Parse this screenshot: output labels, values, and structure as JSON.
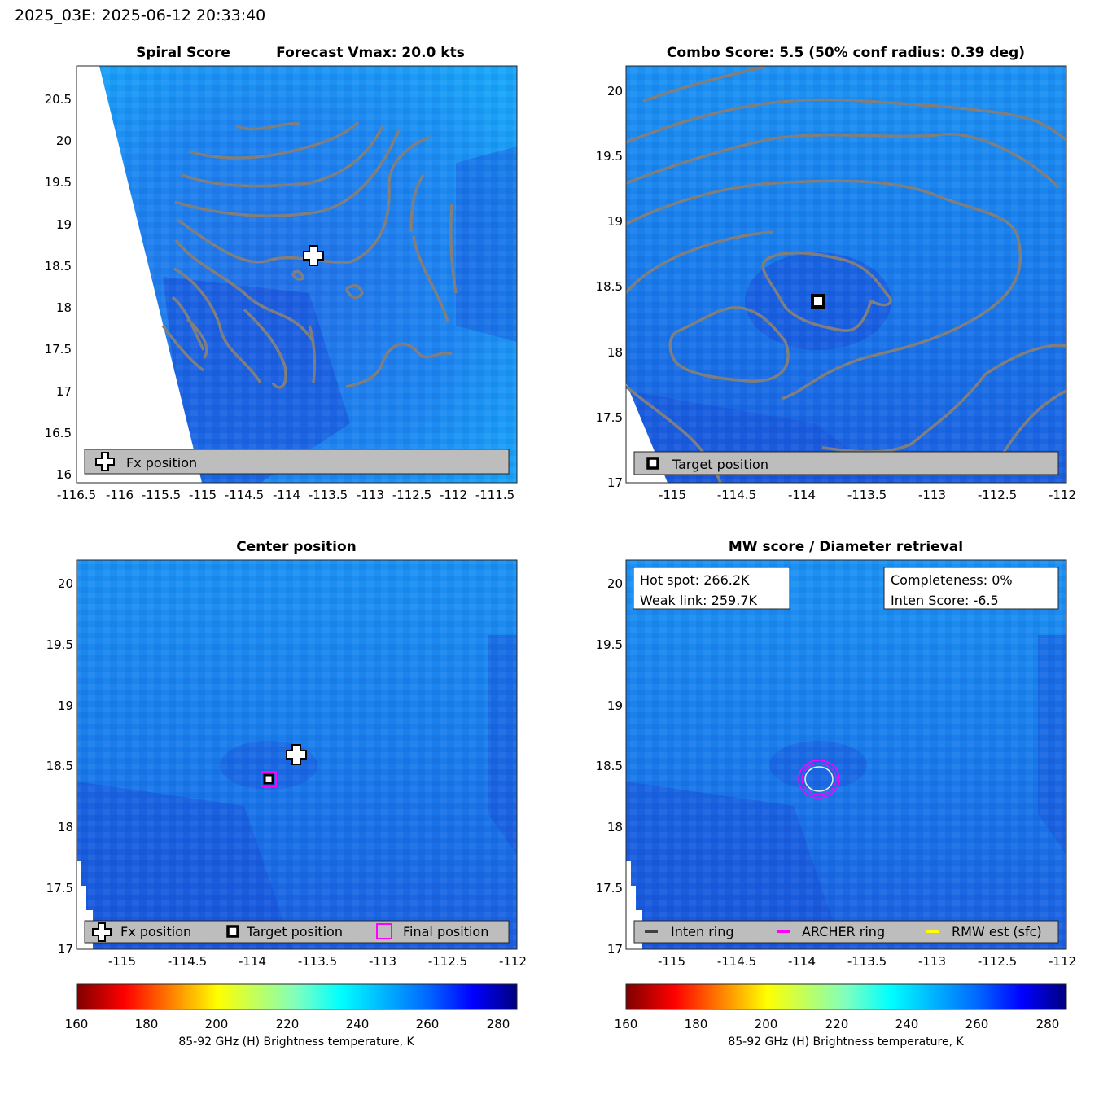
{
  "figure": {
    "suptitle": "2025_03E: 2025-06-12 20:33:40"
  },
  "panels": {
    "spiral": {
      "title_left": "Spiral Score",
      "title_right": "Forecast Vmax: 20.0 kts",
      "xticks": [
        "-116.5",
        "-116",
        "-115.5",
        "-115",
        "-114.5",
        "-114",
        "-113.5",
        "-113",
        "-112.5",
        "-112",
        "-111.5"
      ],
      "yticks": [
        "20.5",
        "20",
        "19.5",
        "19",
        "18.5",
        "18",
        "17.5",
        "17",
        "16.5",
        "16"
      ],
      "legend": [
        "Fx position"
      ]
    },
    "combo": {
      "title": "Combo Score: 5.5  (50% conf radius: 0.39 deg)",
      "xticks": [
        "-115",
        "-114.5",
        "-114",
        "-113.5",
        "-113",
        "-112.5",
        "-112"
      ],
      "yticks": [
        "20",
        "19.5",
        "19",
        "18.5",
        "18",
        "17.5",
        "17"
      ],
      "legend": [
        "Target position"
      ]
    },
    "center": {
      "title": "Center position",
      "xticks": [
        "-115",
        "-114.5",
        "-114",
        "-113.5",
        "-113",
        "-112.5",
        "-112"
      ],
      "yticks": [
        "20",
        "19.5",
        "19",
        "18.5",
        "18",
        "17.5",
        "17"
      ],
      "legend": [
        "Fx position",
        "Target position",
        "Final position"
      ]
    },
    "mw": {
      "title": "MW score / Diameter retrieval",
      "xticks": [
        "-115",
        "-114.5",
        "-114",
        "-113.5",
        "-113",
        "-112.5",
        "-112"
      ],
      "yticks": [
        "20",
        "19.5",
        "19",
        "18.5",
        "18",
        "17.5",
        "17"
      ],
      "box_left": [
        "Hot spot: 266.2K",
        "Weak link: 259.7K"
      ],
      "box_right": [
        "Completeness: 0%",
        "Inten Score: -6.5"
      ],
      "legend": [
        "Inten ring",
        "ARCHER ring",
        "RMW est (sfc)"
      ]
    }
  },
  "colorbar": {
    "ticks": [
      "160",
      "180",
      "200",
      "220",
      "240",
      "260",
      "280"
    ],
    "label": "85-92 GHz (H) Brightness temperature, K"
  },
  "chart_data": [
    {
      "type": "heatmap",
      "title": "Spiral Score / Forecast Vmax: 20.0 kts",
      "xlim": [
        -116.5,
        -111.5
      ],
      "ylim": [
        15.9,
        20.9
      ],
      "fx_position": {
        "lon": -113.7,
        "lat": 18.6
      }
    },
    {
      "type": "heatmap",
      "title": "Combo Score: 5.5  (50% conf radius: 0.39 deg)",
      "xlim": [
        -115.4,
        -112.0
      ],
      "ylim": [
        17.0,
        20.2
      ],
      "target_position": {
        "lon": -113.85,
        "lat": 18.4
      }
    },
    {
      "type": "heatmap",
      "title": "Center position",
      "xlim": [
        -115.4,
        -112.0
      ],
      "ylim": [
        17.0,
        20.2
      ],
      "fx_position": {
        "lon": -113.68,
        "lat": 18.6
      },
      "target_position": {
        "lon": -113.87,
        "lat": 18.4
      },
      "final_position": {
        "lon": -113.87,
        "lat": 18.4
      }
    },
    {
      "type": "heatmap",
      "title": "MW score / Diameter retrieval",
      "xlim": [
        -115.4,
        -112.0
      ],
      "ylim": [
        17.0,
        20.2
      ],
      "ring_center": {
        "lon": -113.87,
        "lat": 18.4
      },
      "hot_spot_K": 266.2,
      "weak_link_K": 259.7,
      "completeness_pct": 0,
      "inten_score": -6.5
    }
  ],
  "colors": {
    "field": "#1a73e8",
    "contour": "#7f7f7f",
    "legend_bg": "#bdbdbd",
    "archer": "#ff00ff",
    "rmw": "#ffff00"
  }
}
